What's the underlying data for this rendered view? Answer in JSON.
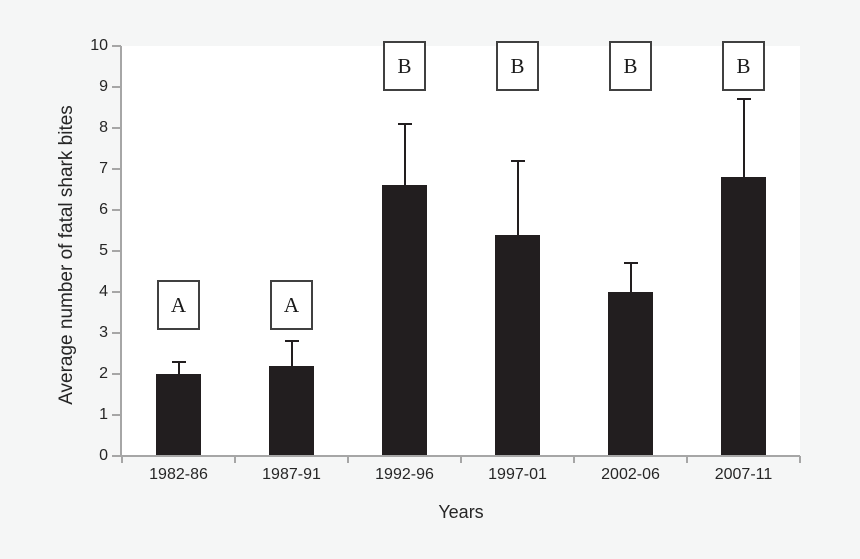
{
  "figure": {
    "background_color": "#f5f6f6",
    "plot_background_color": "#ffffff",
    "bar_color": "#221e1f",
    "error_bar_color": "#221e1f",
    "axis_color": "#a6a6a6",
    "label_color": "#262626",
    "letter_box_border_color": "#404040",
    "letter_color": "#1a1a1a"
  },
  "chart_data": {
    "type": "bar",
    "title": "",
    "xlabel": "Years",
    "ylabel": "Average number of fatal shark bites",
    "categories": [
      "1982-86",
      "1987-91",
      "1992-96",
      "1997-01",
      "2002-06",
      "2007-11"
    ],
    "values": [
      2.0,
      2.2,
      6.6,
      5.4,
      4.0,
      6.8
    ],
    "errors_upper": [
      0.3,
      0.6,
      1.5,
      1.8,
      0.7,
      1.9
    ],
    "significance_letters": [
      "A",
      "A",
      "B",
      "B",
      "B",
      "B"
    ],
    "ylim": [
      0,
      10
    ],
    "yticks": [
      0,
      1,
      2,
      3,
      4,
      5,
      6,
      7,
      8,
      9,
      10
    ],
    "grid": false,
    "legend_position": "none"
  }
}
